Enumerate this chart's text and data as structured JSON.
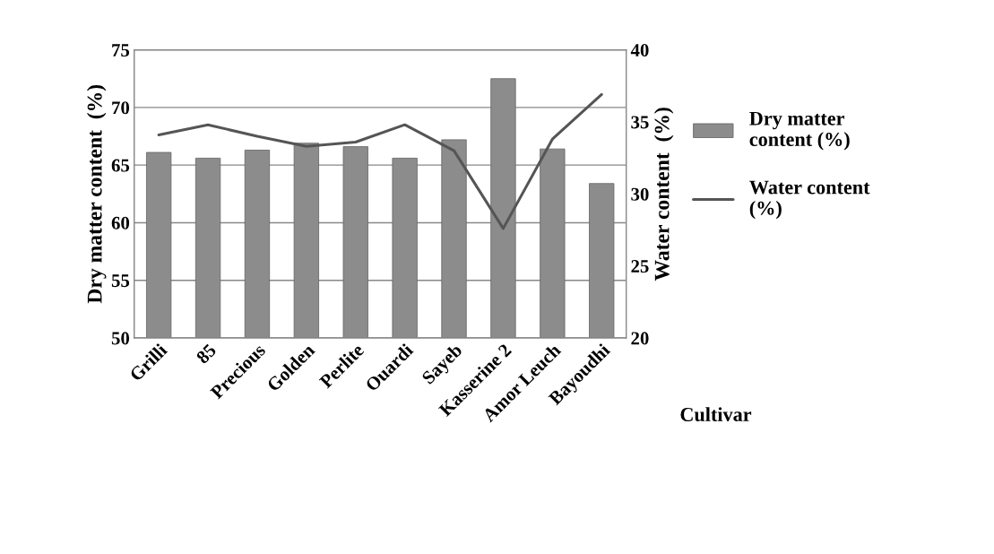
{
  "chart_data": {
    "type": "bar",
    "xlabel": "Cultivar",
    "ylabel": "Dry matter content  (%)",
    "y2label": "Water content  (%)",
    "categories": [
      "Grilli",
      "85",
      "Precious",
      "Golden",
      "Perlite",
      "Ouardi",
      "Sayeb",
      "Kasserine 2",
      "Amor Leuch",
      "Bayoudhi"
    ],
    "series": [
      {
        "name": "Dry matter content (%)",
        "color": "#8c8c8c",
        "values": [
          66.1,
          65.6,
          66.3,
          66.9,
          66.6,
          65.6,
          67.2,
          72.5,
          66.4,
          63.4
        ]
      },
      {
        "name": "Water content (%)",
        "type": "line",
        "axis": "y2",
        "color": "#555555",
        "values": [
          34.1,
          34.8,
          34.0,
          33.3,
          33.6,
          34.8,
          33.0,
          27.6,
          33.8,
          36.9
        ]
      }
    ],
    "ylim": [
      50,
      75
    ],
    "yticks": [
      50,
      55,
      60,
      65,
      70,
      75
    ],
    "y2lim": [
      20,
      40
    ],
    "y2ticks": [
      20,
      25,
      30,
      35,
      40
    ],
    "grid": "y",
    "legend": "right"
  }
}
